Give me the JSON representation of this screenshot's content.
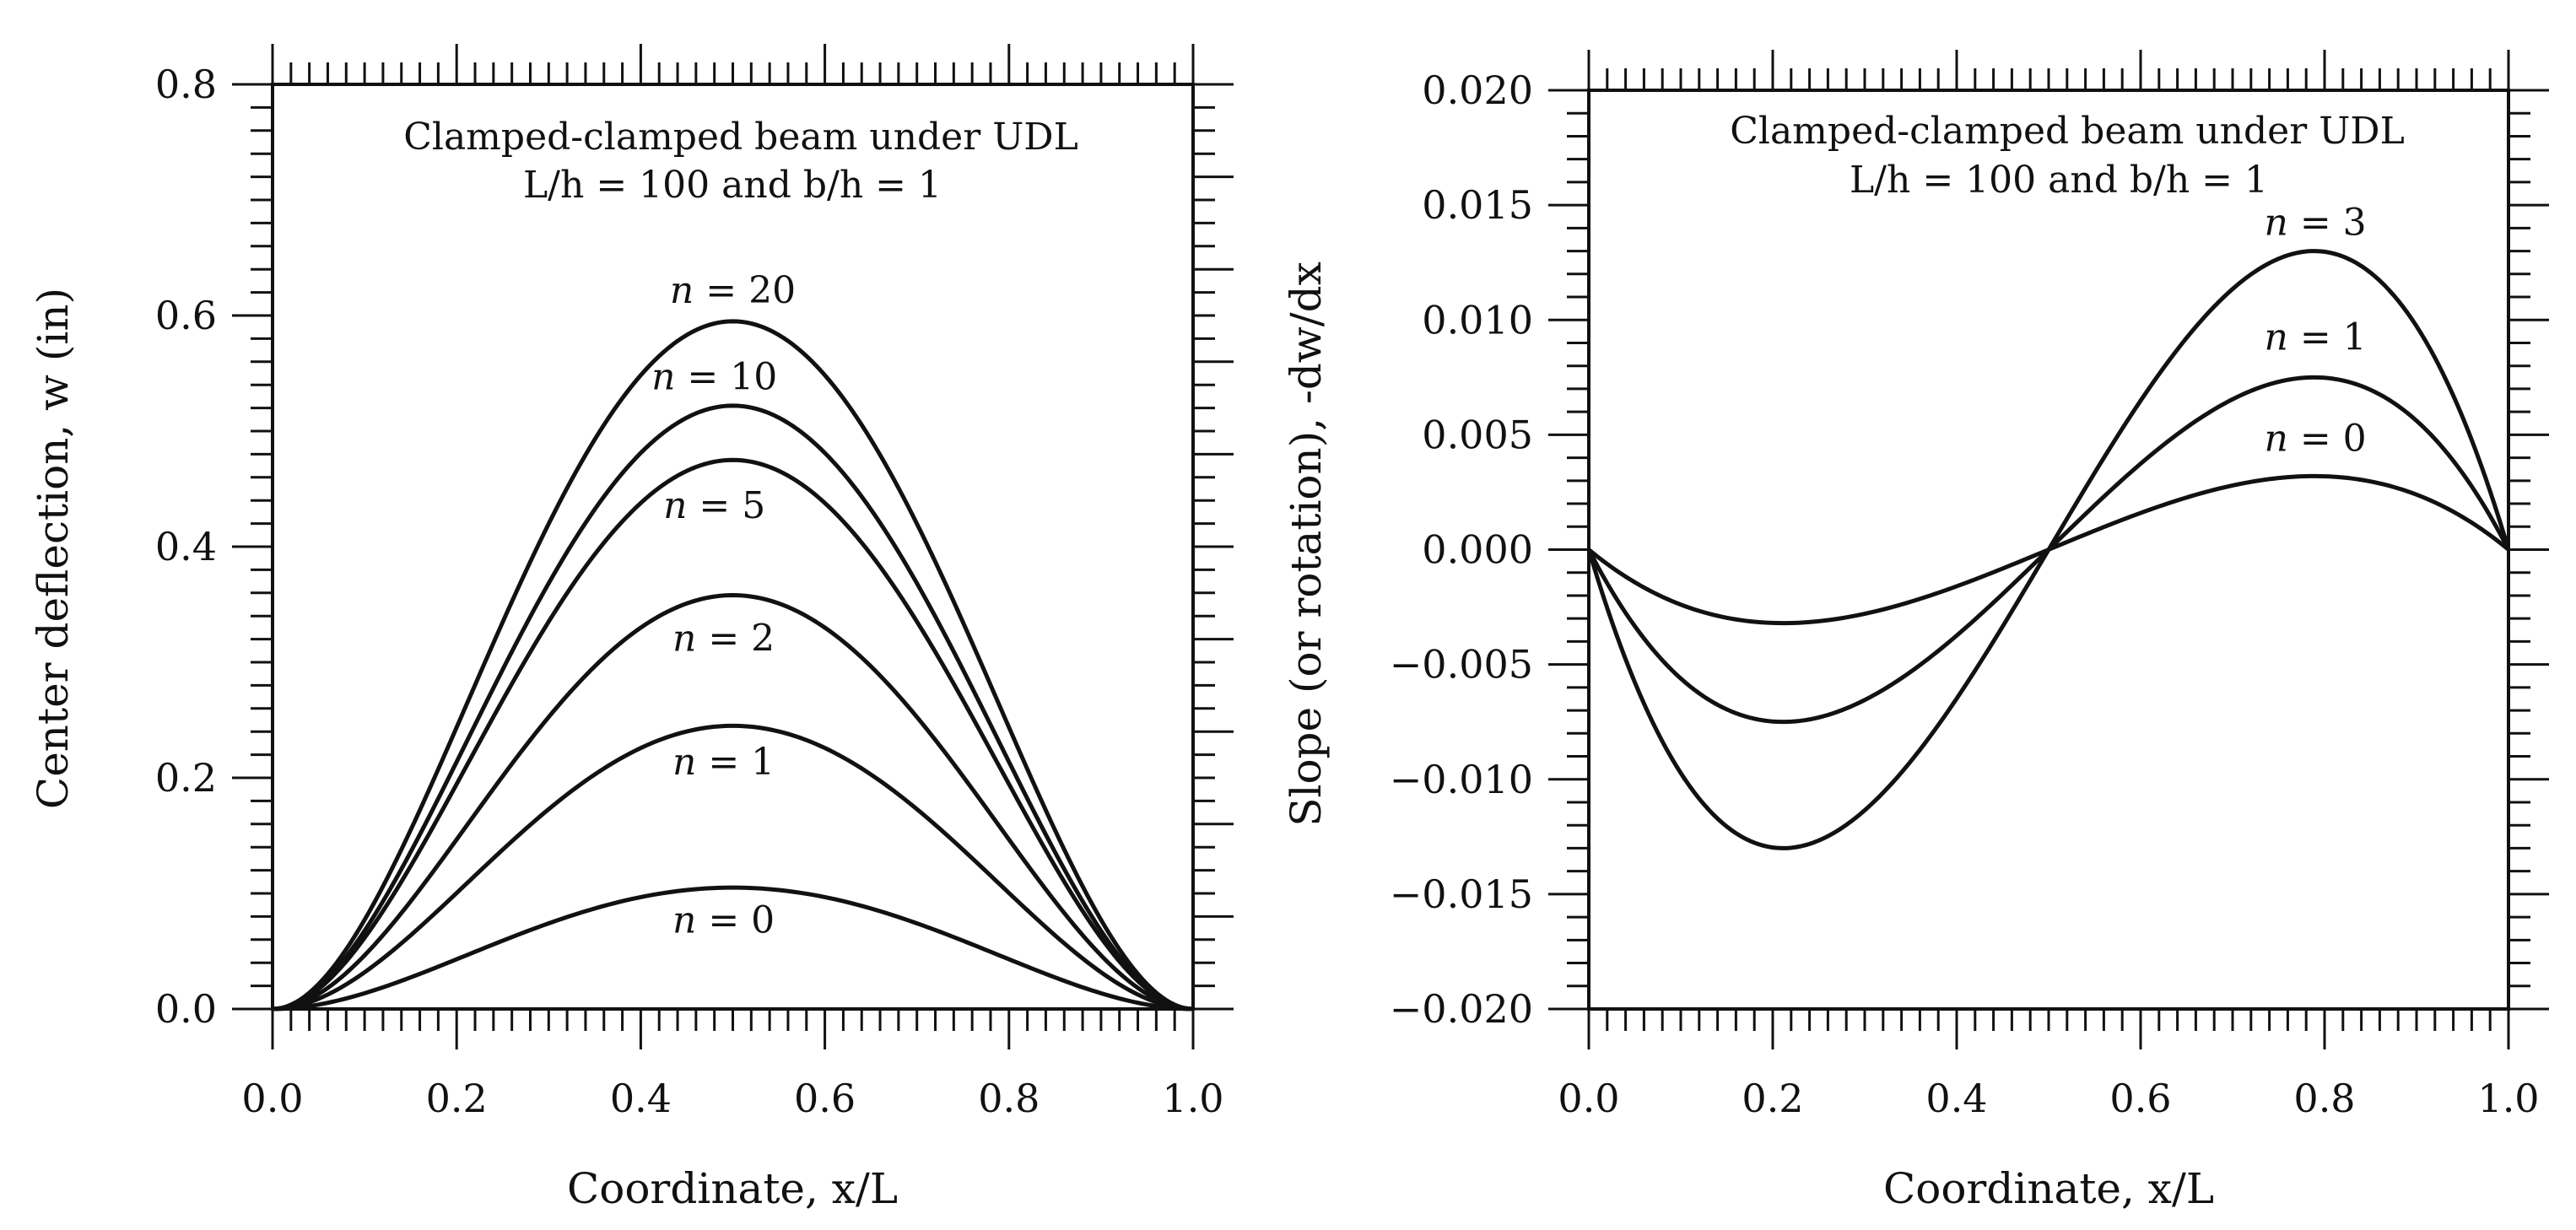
{
  "chart_data": [
    {
      "type": "line",
      "title": [
        "Clamped-clamped beam under UDL",
        "L/h = 100 and b/h = 1"
      ],
      "xlabel": "Coordinate, x/L",
      "ylabel": "Center deflection, w (in)",
      "xlim": [
        0.0,
        1.0
      ],
      "ylim": [
        0.0,
        0.8
      ],
      "xticks": [
        "0.0",
        "0.2",
        "0.4",
        "0.6",
        "0.8",
        "1.0"
      ],
      "yticks": [
        "0.0",
        "0.2",
        "0.4",
        "0.6",
        "0.8"
      ],
      "grid": false,
      "series": [
        {
          "name": "n = 0",
          "shape": "clamped_deflection",
          "peak": 0.105,
          "label_at": [
            0.49,
            0.066
          ]
        },
        {
          "name": "n = 1",
          "shape": "clamped_deflection",
          "peak": 0.245,
          "label_at": [
            0.49,
            0.203
          ]
        },
        {
          "name": "n = 2",
          "shape": "clamped_deflection",
          "peak": 0.358,
          "label_at": [
            0.49,
            0.31
          ]
        },
        {
          "name": "n = 5",
          "shape": "clamped_deflection",
          "peak": 0.475,
          "label_at": [
            0.48,
            0.425
          ]
        },
        {
          "name": "n = 10",
          "shape": "clamped_deflection",
          "peak": 0.522,
          "label_at": [
            0.48,
            0.536
          ]
        },
        {
          "name": "n = 20",
          "shape": "clamped_deflection",
          "peak": 0.595,
          "label_at": [
            0.5,
            0.611
          ]
        }
      ]
    },
    {
      "type": "line",
      "title": [
        "Clamped-clamped beam under UDL",
        "L/h = 100 and b/h = 1"
      ],
      "xlabel": "Coordinate, x/L",
      "ylabel": "Slope (or rotation), -dw/dx",
      "xlim": [
        0.0,
        1.0
      ],
      "ylim": [
        -0.02,
        0.02
      ],
      "xticks": [
        "0.0",
        "0.2",
        "0.4",
        "0.6",
        "0.8",
        "1.0"
      ],
      "yticks": [
        "0.020",
        "0.015",
        "0.010",
        "0.005",
        "0.000",
        "−0.005",
        "−0.010",
        "−0.015",
        "−0.020"
      ],
      "grid": false,
      "series": [
        {
          "name": "n = 0",
          "shape": "clamped_slope",
          "peak": 0.0032,
          "label_at": [
            0.79,
            0.0043
          ]
        },
        {
          "name": "n = 1",
          "shape": "clamped_slope",
          "peak": 0.0075,
          "label_at": [
            0.79,
            0.0087
          ]
        },
        {
          "name": "n = 3",
          "shape": "clamped_slope",
          "peak": 0.013,
          "label_at": [
            0.79,
            0.0137
          ]
        }
      ]
    }
  ]
}
